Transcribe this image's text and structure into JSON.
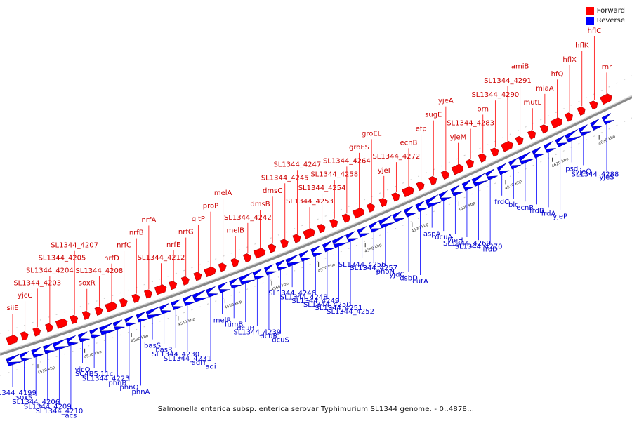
{
  "legend": {
    "forward_label": "Forward",
    "reverse_label": "Reverse",
    "forward_color": "#ff0000",
    "reverse_color": "#0000ff"
  },
  "caption": "Salmonella enterica subsp. enterica serovar Typhimurium SL1344 genome. - 0..4878...",
  "ticks": [
    "4510 kbp",
    "4520 kbp",
    "4530 kbp",
    "4540 kbp",
    "4550 kbp",
    "4560 kbp",
    "4570 kbp",
    "4580 kbp",
    "4590 kbp",
    "4600 kbp",
    "4610 kbp",
    "4620 kbp",
    "4630 kbp"
  ],
  "forward_genes": [
    "siiE",
    "yjcC",
    "SL1344_4203",
    "SL1344_4204",
    "SL1344_4205",
    "SL1344_4207",
    "soxR",
    "SL1344_4208",
    "nrfD",
    "nrfC",
    "nrfB",
    "nrfA",
    "SL1344_4212",
    "nrfE",
    "nrfG",
    "gltP",
    "proP",
    "melA",
    "melB",
    "SL1344_4242",
    "dmsB",
    "dmsC",
    "SL1344_4245",
    "SL1344_4247",
    "SL1344_4253",
    "SL1344_4254",
    "SL1344_4258",
    "SL1344_4264",
    "groES",
    "groEL",
    "yjeI",
    "SL1344_4272",
    "ecnB",
    "efp",
    "sugE",
    "yjeA",
    "yjeM",
    "SL1344_4283",
    "orn",
    "SL1344_4290",
    "SL1344_4291",
    "amiB",
    "mutL",
    "miaA",
    "hfQ",
    "hflX",
    "hflK",
    "hflC",
    "rnr"
  ],
  "reverse_genes": [
    "SL1344_4199",
    "soxS",
    "SL1344_4206",
    "SL1344_4209",
    "SL1344_4210",
    "acs",
    "yjcO",
    "SC4B5.11c",
    "SL1344_4223",
    "phnB",
    "phnO",
    "phnA",
    "basS",
    "basR",
    "SL1344_4230",
    "SL1344_4231",
    "adiY",
    "adi",
    "melR",
    "fumB",
    "dcuB",
    "SL1344_4239",
    "dcuR",
    "dcuS",
    "SL1344_4246",
    "SL1344_4248",
    "SL1344_4249",
    "SL1344_4250",
    "SL1344_4251",
    "SL1344_4252",
    "SL1344_4256",
    "SL1344_4257",
    "phoN",
    "yjdC",
    "dsbD",
    "cutA",
    "aspA",
    "dcuA",
    "yjeH",
    "SL1344_4269",
    "SL1344_4270",
    "frdD",
    "frdC",
    "blc",
    "ecnR",
    "frdB",
    "frdA",
    "yjeP",
    "psd",
    "yjeQ",
    "SL1344_4288",
    "yjeS"
  ]
}
